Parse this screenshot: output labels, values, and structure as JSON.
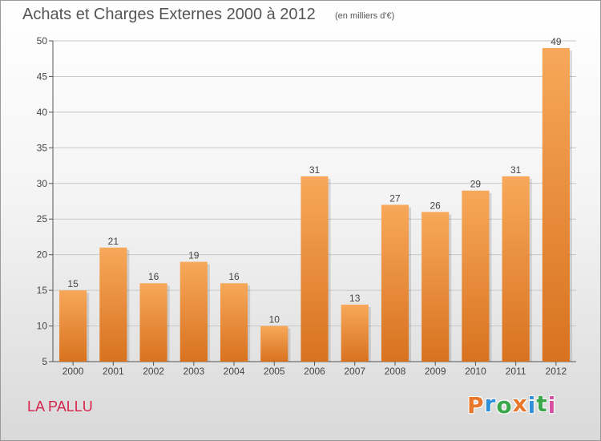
{
  "header": {
    "title": "Achats et Charges Externes 2000 à 2012",
    "subtitle": "(en milliers d'€)"
  },
  "footer": {
    "commune": "LA PALLU",
    "logo": {
      "letters": [
        "P",
        "r",
        "o",
        "x",
        "i",
        "t",
        "i"
      ],
      "colors": [
        "#e8762b",
        "#2f8fd8",
        "#3aa84a",
        "#e8762b",
        "#2f8fd8",
        "#3aa84a",
        "#d64fa0"
      ]
    }
  },
  "chart_data": {
    "type": "bar",
    "categories": [
      "2000",
      "2001",
      "2002",
      "2003",
      "2004",
      "2005",
      "2006",
      "2007",
      "2008",
      "2009",
      "2010",
      "2011",
      "2012"
    ],
    "values": [
      15,
      21,
      16,
      19,
      16,
      10,
      31,
      13,
      27,
      26,
      29,
      31,
      49
    ],
    "value_labels": [
      "15",
      "21",
      "16",
      "19",
      "16",
      "10",
      "31",
      "13",
      "27",
      "26",
      "29",
      "31",
      "49"
    ],
    "ylim": [
      5,
      50
    ],
    "yticks": [
      5,
      10,
      15,
      20,
      25,
      30,
      35,
      40,
      45,
      50
    ],
    "ytick_labels": [
      "5",
      "10",
      "15",
      "20",
      "25",
      "30",
      "35",
      "40",
      "45",
      "50"
    ],
    "grid": true,
    "bar_color_top": "#f7a85a",
    "bar_color_bottom": "#d8721f",
    "grid_color": "#c8c8c8"
  }
}
